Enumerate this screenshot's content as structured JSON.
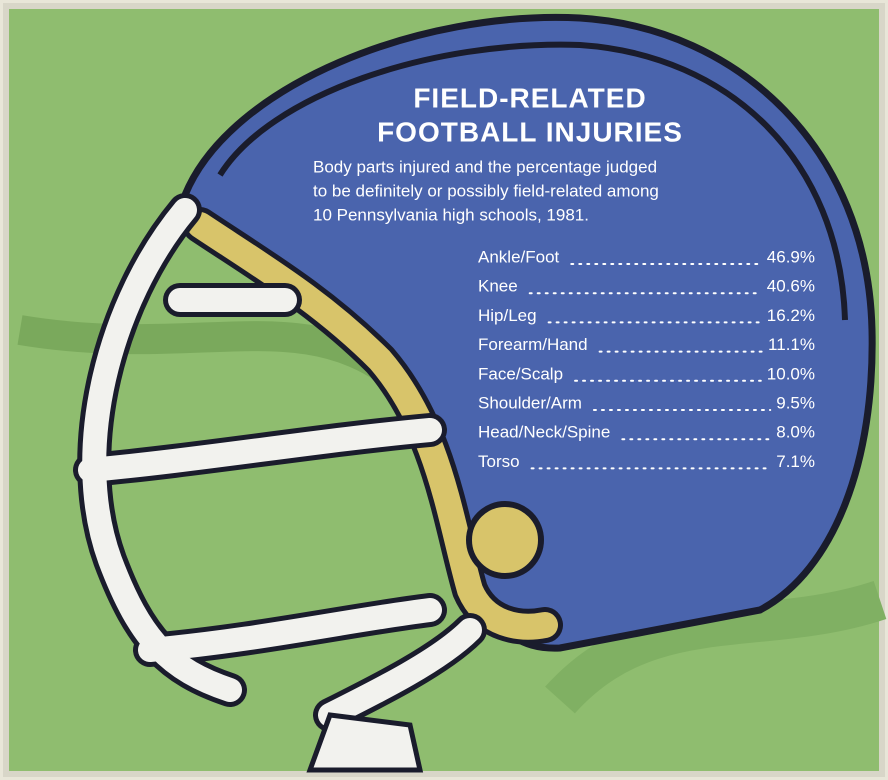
{
  "header": {
    "title": [
      "FIELD-RELATED",
      "FOOTBALL INJURIES"
    ],
    "subtitle": [
      "Body parts injured and the percentage judged",
      "to be definitely or possibly field-related among",
      "10 Pennsylvania high schools, 1981."
    ]
  },
  "table": {
    "rows": [
      [
        "Ankle/Foot",
        "46.9%"
      ],
      [
        "Knee",
        "40.6%"
      ],
      [
        "Hip/Leg",
        "16.2%"
      ],
      [
        "Forearm/Hand",
        "11.1%"
      ],
      [
        "Face/Scalp",
        "10.0%"
      ],
      [
        "Shoulder/Arm",
        "9.5%"
      ],
      [
        "Head/Neck/Spine",
        "8.0%"
      ],
      [
        "Torso",
        "7.1%"
      ]
    ]
  }
}
